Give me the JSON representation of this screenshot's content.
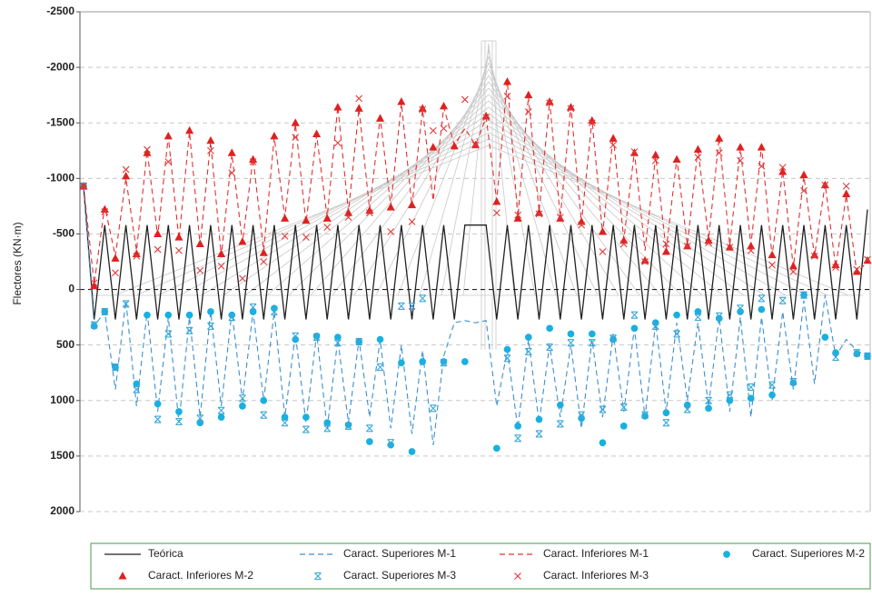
{
  "chart_data": {
    "type": "line",
    "y_label": "Flectores (KN·m)",
    "categories": [
      null,
      null,
      null,
      null,
      null,
      null,
      null,
      null,
      null,
      null,
      null,
      null,
      null,
      null,
      null,
      null,
      null,
      null,
      null,
      null,
      null,
      null,
      null,
      null,
      null,
      null,
      null,
      null,
      null,
      null,
      null,
      null,
      null,
      null,
      null,
      null,
      null,
      null,
      null,
      null,
      null,
      null,
      null,
      null,
      null,
      null,
      null,
      null,
      null,
      null,
      null,
      null,
      null,
      null,
      null,
      null,
      null,
      null,
      null,
      null,
      null,
      null,
      null,
      null,
      null,
      null,
      null,
      null,
      null,
      null,
      null,
      null,
      null,
      null,
      null
    ],
    "ylim": [
      -2500,
      2000
    ],
    "y_inverted": true,
    "yticks": [
      -2500,
      -2000,
      -1500,
      -1000,
      -500,
      0,
      500,
      1000,
      1500,
      2000
    ],
    "grid": true,
    "legend": "bottom",
    "series": [
      {
        "name": "Teórica",
        "color": "#222222",
        "marker": "line",
        "values": [
          -930,
          270,
          -580,
          270,
          -580,
          270,
          -580,
          270,
          -580,
          270,
          -580,
          270,
          -580,
          270,
          -580,
          270,
          -580,
          270,
          -580,
          270,
          -580,
          270,
          -580,
          270,
          -580,
          270,
          -580,
          270,
          -580,
          270,
          -580,
          270,
          -580,
          270,
          -580,
          270,
          -580,
          -580,
          -580,
          270,
          -580,
          270,
          -580,
          270,
          -580,
          270,
          -580,
          270,
          -580,
          270,
          -580,
          270,
          -580,
          270,
          -580,
          270,
          -580,
          270,
          -580,
          270,
          -580,
          270,
          -580,
          270,
          -580,
          270,
          -580,
          270,
          -580,
          270,
          -580,
          270,
          -580,
          270,
          -720
        ]
      },
      {
        "name": "Caract. Superiores M-1",
        "color": "#3a8fd0",
        "marker": "dashed",
        "values": [
          -930,
          330,
          200,
          900,
          100,
          1050,
          200,
          1100,
          250,
          1200,
          250,
          1150,
          200,
          1050,
          200,
          1000,
          200,
          1000,
          200,
          1150,
          400,
          1200,
          400,
          1250,
          450,
          1200,
          450,
          1150,
          450,
          1250,
          500,
          1300,
          550,
          1400,
          600,
          300,
          280,
          300,
          280,
          1050,
          550,
          1250,
          450,
          1200,
          500,
          1150,
          500,
          1250,
          450,
          1150,
          400,
          1100,
          350,
          1150,
          300,
          1100,
          300,
          1000,
          300,
          1050,
          250,
          1100,
          250,
          1150,
          250,
          1000,
          200,
          900,
          100,
          850,
          50,
          600,
          450,
          550,
          600
        ]
      },
      {
        "name": "Caract. Inferiores M-1",
        "color": "#e03030",
        "marker": "dashed",
        "values": [
          -930,
          -50,
          -750,
          -300,
          -1000,
          -350,
          -1250,
          -480,
          -1380,
          -450,
          -1420,
          -400,
          -1330,
          -300,
          -1220,
          -420,
          -1180,
          -350,
          -1370,
          -650,
          -1490,
          -600,
          -1390,
          -650,
          -1650,
          -700,
          -1630,
          -720,
          -1550,
          -750,
          -1680,
          -750,
          -1620,
          -800,
          -1640,
          -1300,
          -1450,
          -1300,
          -1550,
          -800,
          -1880,
          -650,
          -1740,
          -700,
          -1700,
          -650,
          -1650,
          -600,
          -1530,
          -500,
          -1380,
          -450,
          -1240,
          -350,
          -1200,
          -350,
          -1180,
          -400,
          -1270,
          -450,
          -1370,
          -400,
          -1270,
          -400,
          -1290,
          -300,
          -1070,
          -200,
          -1020,
          -300,
          -950,
          -200,
          -850,
          -150,
          -250
        ]
      },
      {
        "name": "Caract. Superiores M-2",
        "color": "#18b0e0",
        "marker": "circle",
        "values": [
          -930,
          330,
          200,
          700,
          null,
          850,
          230,
          1030,
          230,
          1100,
          230,
          1200,
          200,
          1150,
          230,
          1050,
          200,
          1000,
          170,
          1150,
          450,
          1150,
          420,
          1200,
          430,
          1220,
          470,
          1370,
          450,
          1400,
          660,
          1460,
          650,
          null,
          650,
          null,
          650,
          null,
          null,
          1430,
          540,
          1230,
          430,
          1170,
          350,
          1040,
          400,
          1160,
          400,
          1380,
          450,
          1230,
          350,
          1140,
          300,
          1110,
          230,
          1040,
          200,
          1070,
          260,
          1000,
          200,
          980,
          180,
          950,
          null,
          840,
          50,
          null,
          430,
          570,
          null,
          580,
          600
        ]
      },
      {
        "name": "Caract. Inferiores M-2",
        "color": "#e02020",
        "marker": "triangle",
        "values": [
          -930,
          -30,
          -720,
          -280,
          -1020,
          -320,
          -1230,
          -500,
          -1380,
          -470,
          -1430,
          -410,
          -1340,
          -320,
          -1230,
          -430,
          -1170,
          -330,
          -1380,
          -640,
          -1500,
          -620,
          -1400,
          -640,
          -1640,
          -690,
          -1630,
          -710,
          -1540,
          -740,
          -1690,
          -760,
          -1630,
          -1280,
          -1650,
          -1290,
          null,
          -1300,
          -1560,
          -790,
          -1870,
          -640,
          -1750,
          -690,
          -1690,
          -640,
          -1640,
          -610,
          -1520,
          -520,
          -1360,
          -440,
          -1230,
          -260,
          -1210,
          -340,
          -1170,
          -390,
          -1260,
          -440,
          -1360,
          -380,
          -1280,
          -390,
          -1280,
          -310,
          -1060,
          -210,
          -1030,
          -310,
          -940,
          -220,
          -860,
          -160,
          -260
        ]
      },
      {
        "name": "Caract. Superiores M-3",
        "color": "#3aa8d8",
        "marker": "asterisk",
        "values": [
          -930,
          320,
          200,
          700,
          130,
          900,
          null,
          1170,
          400,
          1190,
          370,
          1160,
          330,
          1090,
          250,
          980,
          160,
          1130,
          200,
          1200,
          420,
          1260,
          430,
          1250,
          480,
          1230,
          470,
          1250,
          700,
          1380,
          150,
          150,
          80,
          1070,
          660,
          null,
          null,
          null,
          null,
          null,
          620,
          1340,
          560,
          1300,
          520,
          1210,
          480,
          1130,
          480,
          1080,
          440,
          1060,
          230,
          1130,
          330,
          1200,
          400,
          1080,
          250,
          1000,
          240,
          950,
          170,
          880,
          80,
          860,
          100,
          830,
          50,
          null,
          null,
          610,
          null,
          570,
          600
        ]
      },
      {
        "name": "Caract. Inferiores M-3",
        "color": "#e03a3a",
        "marker": "x",
        "values": [
          -930,
          -60,
          -700,
          -150,
          -1080,
          -300,
          -1260,
          -360,
          -1150,
          -350,
          null,
          -170,
          -1250,
          -210,
          -1050,
          -100,
          -1150,
          -250,
          null,
          -480,
          -1370,
          -470,
          null,
          -560,
          -1320,
          -650,
          -1720,
          -690,
          null,
          -520,
          null,
          -610,
          -1620,
          -1430,
          -1450,
          null,
          -1710,
          -1300,
          -1550,
          -690,
          -1740,
          -670,
          -1600,
          -680,
          -1680,
          -650,
          -1630,
          -580,
          -1500,
          -340,
          -1300,
          -410,
          -1240,
          -250,
          -1160,
          -410,
          null,
          -390,
          -1190,
          -420,
          -1230,
          -380,
          -1160,
          -350,
          -1110,
          -220,
          -1100,
          -160,
          -890,
          -300,
          -940,
          -200,
          -930,
          -180,
          -270
        ]
      }
    ]
  }
}
